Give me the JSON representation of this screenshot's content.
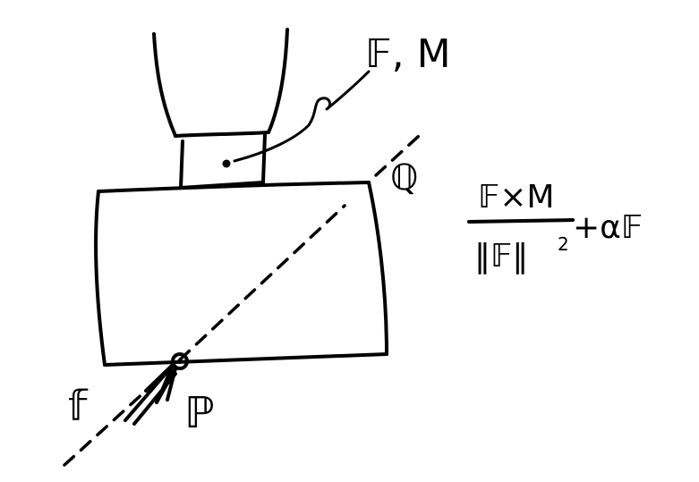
{
  "labels": {
    "wrench": "𝔽, M",
    "axis_point": "ℚ",
    "force": "𝕗",
    "contact_point": "ℙ"
  },
  "formula": {
    "numerator": "𝔽×M",
    "denominator": "‖𝔽‖",
    "exponent": "2",
    "tail": "+α𝔽"
  }
}
